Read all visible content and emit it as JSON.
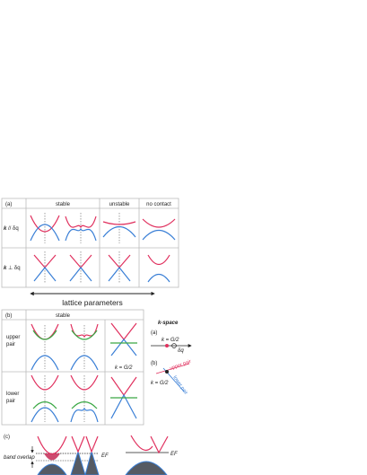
{
  "colors": {
    "conduction": "#e0305e",
    "valence": "#3a7fd6",
    "middle": "#3aa845",
    "fill": "#555a63",
    "grid": "#bbbbbb"
  },
  "panel_a": {
    "tag": "(a)",
    "headers": [
      "stable",
      "unstable",
      "no contact"
    ],
    "rows": [
      {
        "label_k": "k",
        "label_rest": " // δq"
      },
      {
        "label_k": "k",
        "label_rest": " ⊥ δq"
      }
    ],
    "arrow_label": "lattice parameters"
  },
  "panel_b": {
    "tag": "(b)",
    "header": "stable",
    "rows": [
      {
        "line1": "upper",
        "line2": "pair"
      },
      {
        "line1": "lower",
        "line2": "pair"
      }
    ],
    "kspace": {
      "title": "k-space",
      "sub_a": "(a)",
      "sub_b": "(b)",
      "label_g_a": "k = G/2",
      "label_g_b": "k = G/2",
      "label_dq": "δq",
      "label_upper": "upper pair",
      "label_lower": "lower pair"
    },
    "cell_label": "k = G/2"
  },
  "panel_c": {
    "tag": "(c)",
    "band_overlap": "band overlap",
    "ef_left": "EF",
    "ef_right": "EF"
  }
}
